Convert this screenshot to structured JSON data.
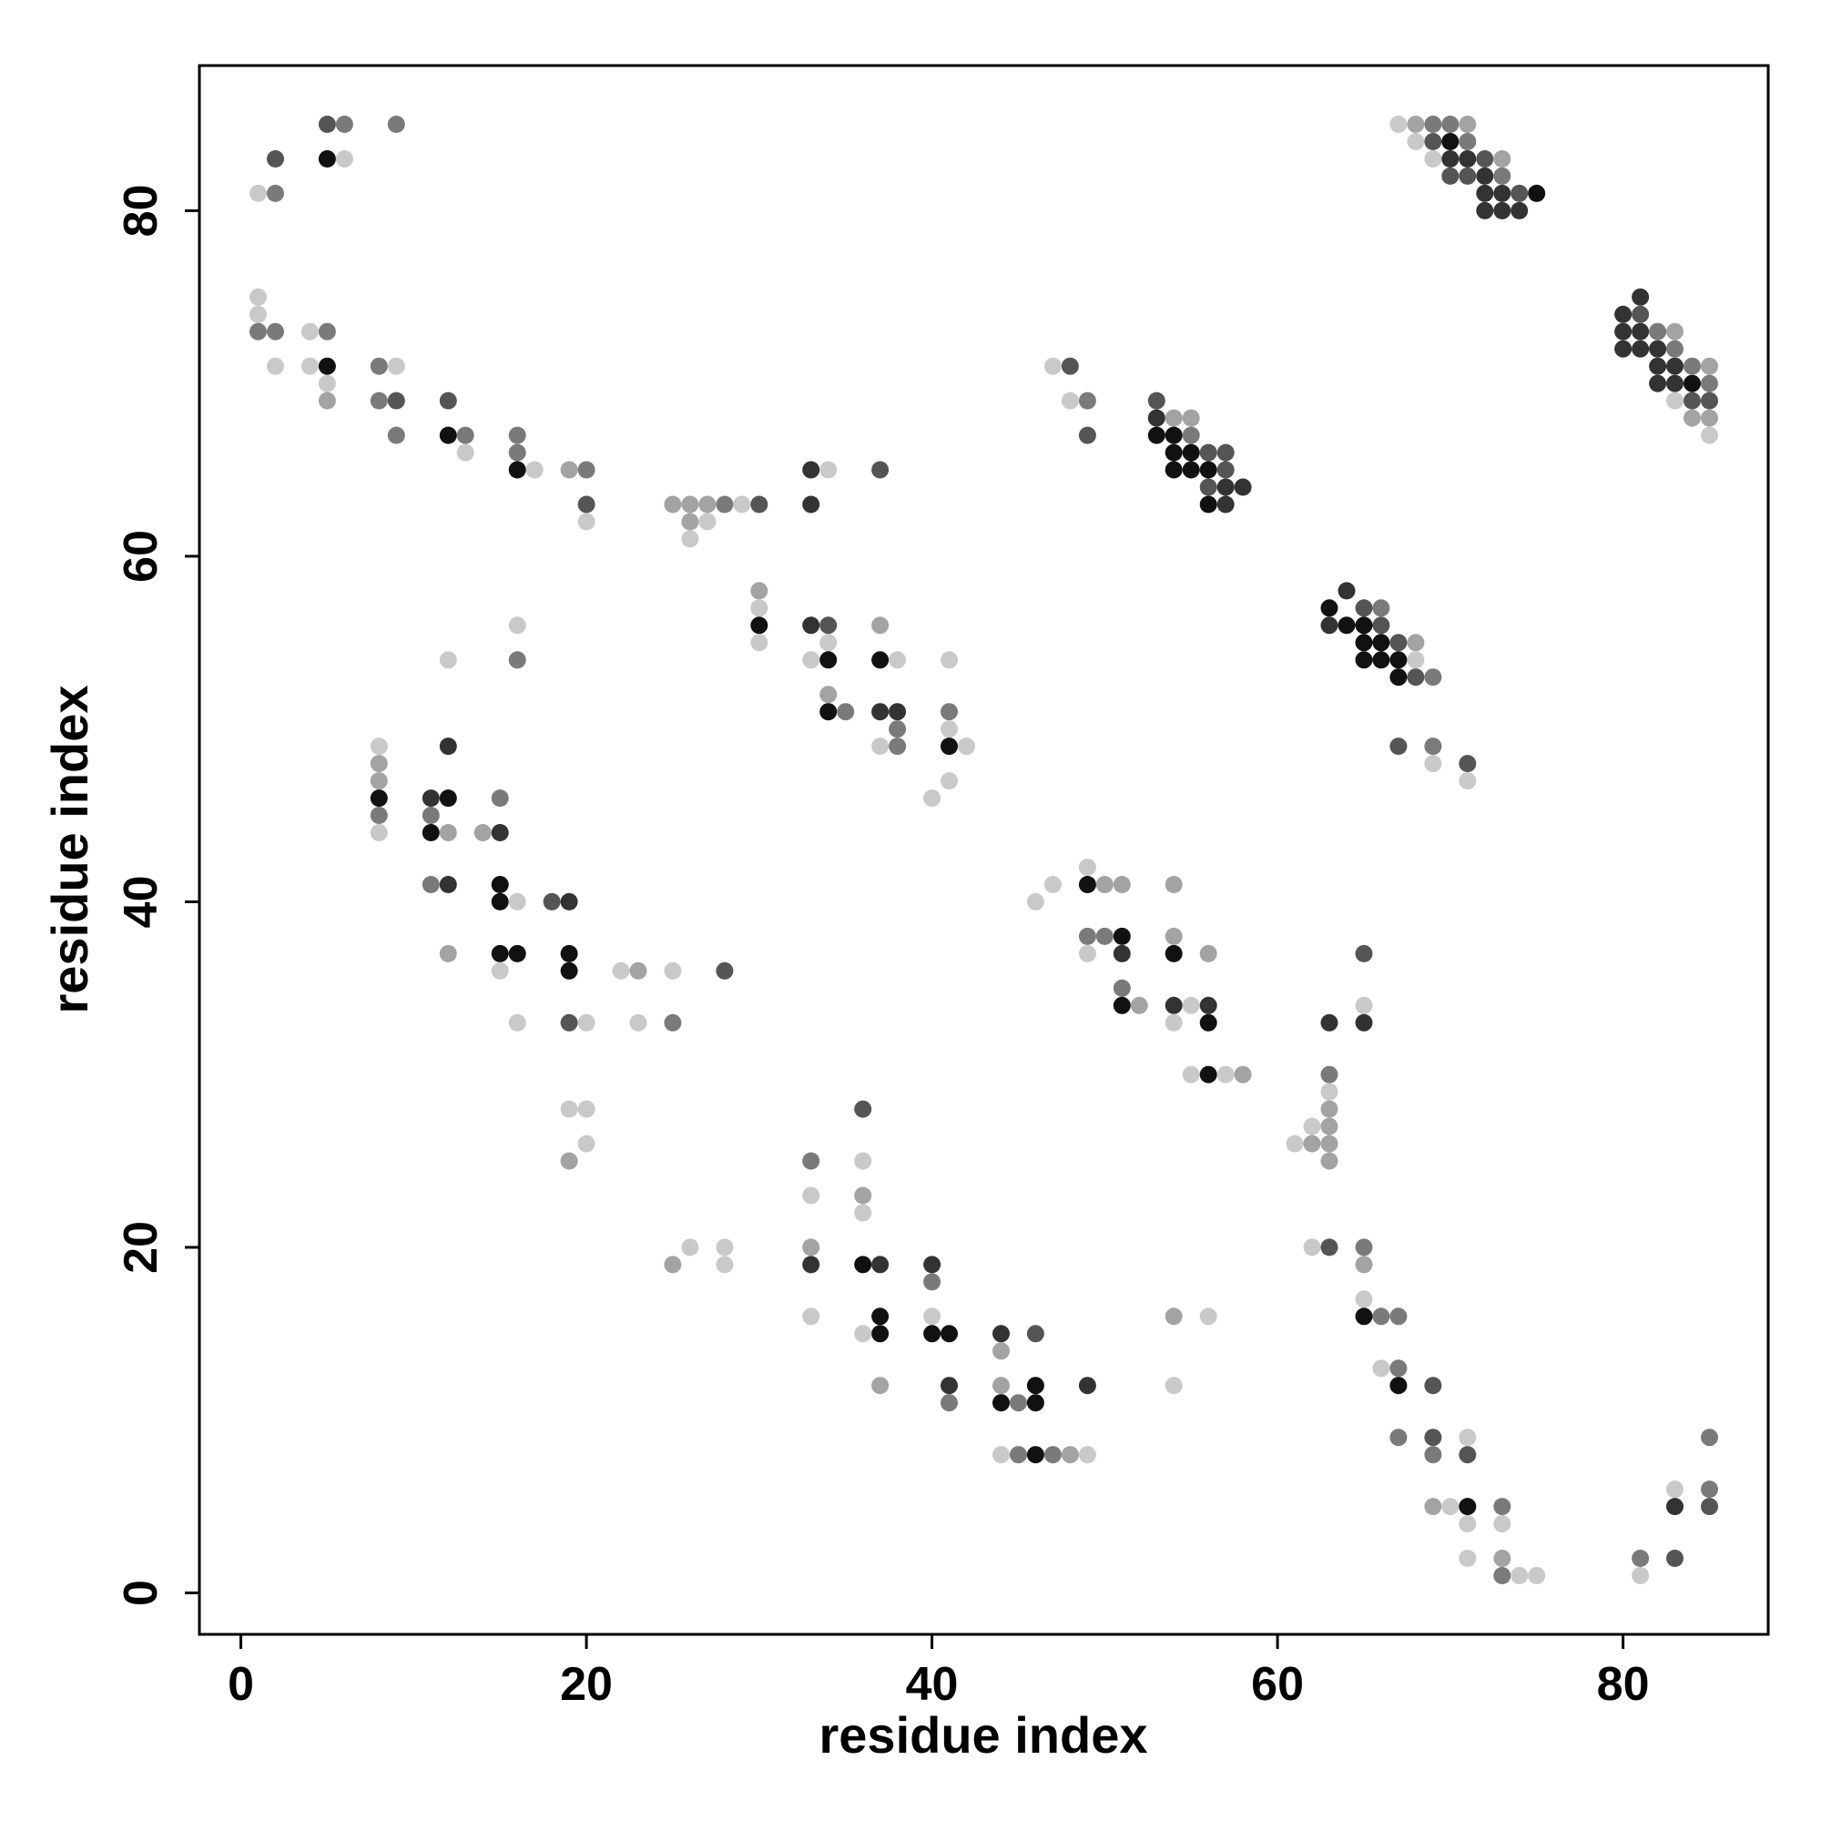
{
  "chart_data": {
    "type": "scatter",
    "title": "",
    "xlabel": "residue index",
    "ylabel": "residue index",
    "xlim": [
      -2.4,
      88.4
    ],
    "ylim": [
      -2.4,
      88.4
    ],
    "xticks": [
      0,
      20,
      40,
      60,
      80
    ],
    "yticks": [
      0,
      20,
      40,
      60,
      80
    ],
    "grid": false,
    "legend": "none",
    "point_shades": {
      "1": "#c9c9c9",
      "2": "#a3a3a3",
      "3": "#7a7a7a",
      "4": "#555555",
      "5": "#333333",
      "6": "#111111"
    },
    "points": [
      [
        1,
        81,
        1
      ],
      [
        2,
        81,
        3
      ],
      [
        2,
        83,
        4
      ],
      [
        5,
        85,
        4
      ],
      [
        6,
        85,
        3
      ],
      [
        9,
        85,
        3
      ],
      [
        5,
        83,
        6
      ],
      [
        6,
        83,
        1
      ],
      [
        1,
        75,
        1
      ],
      [
        1,
        74,
        1
      ],
      [
        1,
        73,
        3
      ],
      [
        2,
        73,
        3
      ],
      [
        2,
        71,
        1
      ],
      [
        4,
        73,
        1
      ],
      [
        5,
        73,
        3
      ],
      [
        4,
        71,
        1
      ],
      [
        5,
        71,
        6
      ],
      [
        5,
        70,
        1
      ],
      [
        5,
        69,
        2
      ],
      [
        8,
        71,
        3
      ],
      [
        9,
        71,
        1
      ],
      [
        8,
        69,
        3
      ],
      [
        9,
        69,
        4
      ],
      [
        9,
        67,
        3
      ],
      [
        12,
        69,
        4
      ],
      [
        12,
        67,
        6
      ],
      [
        13,
        67,
        3
      ],
      [
        13,
        66,
        1
      ],
      [
        16,
        67,
        3
      ],
      [
        16,
        66,
        3
      ],
      [
        16,
        65,
        6
      ],
      [
        17,
        65,
        1
      ],
      [
        19,
        65,
        2
      ],
      [
        20,
        65,
        3
      ],
      [
        20,
        63,
        4
      ],
      [
        20,
        62,
        1
      ],
      [
        25,
        63,
        2
      ],
      [
        26,
        63,
        2
      ],
      [
        27,
        63,
        2
      ],
      [
        28,
        63,
        3
      ],
      [
        29,
        63,
        1
      ],
      [
        30,
        63,
        4
      ],
      [
        26,
        62,
        2
      ],
      [
        27,
        62,
        1
      ],
      [
        26,
        61,
        1
      ],
      [
        33,
        65,
        5
      ],
      [
        34,
        65,
        1
      ],
      [
        37,
        65,
        4
      ],
      [
        33,
        63,
        5
      ],
      [
        30,
        58,
        2
      ],
      [
        30,
        57,
        1
      ],
      [
        30,
        56,
        6
      ],
      [
        30,
        55,
        1
      ],
      [
        33,
        56,
        5
      ],
      [
        34,
        56,
        4
      ],
      [
        33,
        54,
        1
      ],
      [
        34,
        55,
        1
      ],
      [
        34,
        54,
        6
      ],
      [
        34,
        52,
        2
      ],
      [
        34,
        51,
        6
      ],
      [
        35,
        51,
        3
      ],
      [
        37,
        56,
        2
      ],
      [
        37,
        54,
        6
      ],
      [
        38,
        54,
        1
      ],
      [
        37,
        51,
        5
      ],
      [
        38,
        51,
        5
      ],
      [
        38,
        50,
        3
      ],
      [
        37,
        49,
        1
      ],
      [
        38,
        49,
        3
      ],
      [
        41,
        54,
        1
      ],
      [
        41,
        51,
        3
      ],
      [
        41,
        50,
        1
      ],
      [
        41,
        49,
        6
      ],
      [
        42,
        49,
        1
      ],
      [
        41,
        47,
        1
      ],
      [
        40,
        46,
        1
      ],
      [
        12,
        54,
        1
      ],
      [
        16,
        56,
        1
      ],
      [
        16,
        54,
        3
      ],
      [
        12,
        49,
        5
      ],
      [
        8,
        49,
        1
      ],
      [
        8,
        48,
        2
      ],
      [
        8,
        47,
        2
      ],
      [
        8,
        46,
        6
      ],
      [
        8,
        45,
        3
      ],
      [
        8,
        44,
        1
      ],
      [
        11,
        46,
        5
      ],
      [
        12,
        46,
        6
      ],
      [
        11,
        45,
        3
      ],
      [
        11,
        44,
        6
      ],
      [
        12,
        44,
        2
      ],
      [
        14,
        44,
        2
      ],
      [
        15,
        46,
        3
      ],
      [
        15,
        44,
        5
      ],
      [
        11,
        41,
        3
      ],
      [
        12,
        41,
        5
      ],
      [
        15,
        41,
        6
      ],
      [
        15,
        40,
        6
      ],
      [
        16,
        40,
        1
      ],
      [
        18,
        40,
        4
      ],
      [
        19,
        40,
        5
      ],
      [
        12,
        37,
        2
      ],
      [
        15,
        37,
        6
      ],
      [
        16,
        37,
        6
      ],
      [
        15,
        36,
        1
      ],
      [
        19,
        37,
        6
      ],
      [
        19,
        36,
        6
      ],
      [
        22,
        36,
        1
      ],
      [
        23,
        36,
        2
      ],
      [
        25,
        36,
        1
      ],
      [
        28,
        36,
        4
      ],
      [
        16,
        33,
        1
      ],
      [
        19,
        33,
        4
      ],
      [
        20,
        33,
        1
      ],
      [
        23,
        33,
        1
      ],
      [
        25,
        33,
        3
      ],
      [
        19,
        28,
        1
      ],
      [
        20,
        28,
        1
      ],
      [
        20,
        26,
        1
      ],
      [
        19,
        25,
        2
      ],
      [
        25,
        19,
        2
      ],
      [
        26,
        20,
        1
      ],
      [
        28,
        20,
        1
      ],
      [
        28,
        19,
        1
      ],
      [
        33,
        25,
        3
      ],
      [
        33,
        23,
        1
      ],
      [
        33,
        20,
        2
      ],
      [
        33,
        19,
        5
      ],
      [
        33,
        16,
        1
      ],
      [
        36,
        28,
        4
      ],
      [
        36,
        25,
        1
      ],
      [
        36,
        23,
        2
      ],
      [
        36,
        22,
        1
      ],
      [
        36,
        19,
        6
      ],
      [
        37,
        19,
        5
      ],
      [
        37,
        16,
        6
      ],
      [
        37,
        15,
        6
      ],
      [
        36,
        15,
        1
      ],
      [
        37,
        12,
        2
      ],
      [
        40,
        19,
        5
      ],
      [
        40,
        18,
        3
      ],
      [
        40,
        16,
        1
      ],
      [
        40,
        15,
        6
      ],
      [
        41,
        15,
        6
      ],
      [
        41,
        12,
        5
      ],
      [
        41,
        11,
        3
      ],
      [
        44,
        15,
        5
      ],
      [
        46,
        15,
        4
      ],
      [
        44,
        14,
        2
      ],
      [
        44,
        12,
        2
      ],
      [
        46,
        12,
        6
      ],
      [
        44,
        11,
        6
      ],
      [
        45,
        11,
        3
      ],
      [
        46,
        11,
        6
      ],
      [
        49,
        12,
        5
      ],
      [
        44,
        8,
        1
      ],
      [
        45,
        8,
        3
      ],
      [
        46,
        8,
        6
      ],
      [
        47,
        8,
        3
      ],
      [
        48,
        8,
        2
      ],
      [
        49,
        8,
        1
      ],
      [
        47,
        71,
        1
      ],
      [
        48,
        71,
        4
      ],
      [
        48,
        69,
        1
      ],
      [
        49,
        69,
        3
      ],
      [
        49,
        67,
        4
      ],
      [
        53,
        69,
        4
      ],
      [
        53,
        68,
        5
      ],
      [
        54,
        68,
        2
      ],
      [
        55,
        68,
        2
      ],
      [
        53,
        67,
        6
      ],
      [
        54,
        67,
        6
      ],
      [
        55,
        67,
        3
      ],
      [
        54,
        66,
        6
      ],
      [
        55,
        66,
        6
      ],
      [
        56,
        66,
        4
      ],
      [
        57,
        66,
        4
      ],
      [
        54,
        65,
        6
      ],
      [
        55,
        65,
        6
      ],
      [
        56,
        65,
        6
      ],
      [
        57,
        65,
        4
      ],
      [
        56,
        64,
        4
      ],
      [
        57,
        64,
        5
      ],
      [
        58,
        64,
        5
      ],
      [
        56,
        63,
        6
      ],
      [
        57,
        63,
        5
      ],
      [
        63,
        57,
        6
      ],
      [
        64,
        58,
        5
      ],
      [
        65,
        57,
        4
      ],
      [
        66,
        57,
        3
      ],
      [
        63,
        56,
        5
      ],
      [
        64,
        56,
        6
      ],
      [
        65,
        56,
        6
      ],
      [
        66,
        56,
        4
      ],
      [
        65,
        55,
        6
      ],
      [
        66,
        55,
        6
      ],
      [
        67,
        55,
        4
      ],
      [
        68,
        55,
        2
      ],
      [
        65,
        54,
        6
      ],
      [
        66,
        54,
        6
      ],
      [
        67,
        54,
        6
      ],
      [
        68,
        54,
        1
      ],
      [
        67,
        53,
        6
      ],
      [
        68,
        53,
        4
      ],
      [
        69,
        53,
        3
      ],
      [
        67,
        49,
        4
      ],
      [
        69,
        49,
        3
      ],
      [
        69,
        48,
        1
      ],
      [
        71,
        48,
        4
      ],
      [
        71,
        47,
        1
      ],
      [
        46,
        40,
        1
      ],
      [
        47,
        41,
        1
      ],
      [
        49,
        42,
        1
      ],
      [
        49,
        41,
        6
      ],
      [
        50,
        41,
        2
      ],
      [
        51,
        41,
        2
      ],
      [
        49,
        38,
        3
      ],
      [
        50,
        38,
        3
      ],
      [
        51,
        38,
        6
      ],
      [
        49,
        37,
        1
      ],
      [
        51,
        37,
        5
      ],
      [
        51,
        35,
        3
      ],
      [
        51,
        34,
        6
      ],
      [
        52,
        34,
        2
      ],
      [
        54,
        41,
        2
      ],
      [
        54,
        38,
        2
      ],
      [
        54,
        37,
        6
      ],
      [
        56,
        37,
        2
      ],
      [
        54,
        34,
        5
      ],
      [
        55,
        34,
        1
      ],
      [
        56,
        34,
        5
      ],
      [
        54,
        33,
        1
      ],
      [
        56,
        33,
        6
      ],
      [
        55,
        30,
        1
      ],
      [
        56,
        30,
        6
      ],
      [
        57,
        30,
        1
      ],
      [
        58,
        30,
        2
      ],
      [
        65,
        37,
        4
      ],
      [
        65,
        34,
        1
      ],
      [
        63,
        33,
        5
      ],
      [
        65,
        33,
        5
      ],
      [
        63,
        30,
        3
      ],
      [
        63,
        29,
        1
      ],
      [
        63,
        28,
        2
      ],
      [
        62,
        27,
        1
      ],
      [
        63,
        27,
        2
      ],
      [
        61,
        26,
        1
      ],
      [
        62,
        26,
        2
      ],
      [
        63,
        26,
        2
      ],
      [
        63,
        25,
        2
      ],
      [
        62,
        20,
        1
      ],
      [
        63,
        20,
        4
      ],
      [
        65,
        20,
        3
      ],
      [
        65,
        19,
        2
      ],
      [
        65,
        17,
        1
      ],
      [
        65,
        16,
        6
      ],
      [
        66,
        16,
        3
      ],
      [
        67,
        16,
        3
      ],
      [
        54,
        16,
        2
      ],
      [
        56,
        16,
        1
      ],
      [
        54,
        12,
        1
      ],
      [
        66,
        13,
        1
      ],
      [
        67,
        13,
        3
      ],
      [
        67,
        12,
        6
      ],
      [
        69,
        12,
        4
      ],
      [
        67,
        9,
        3
      ],
      [
        69,
        9,
        4
      ],
      [
        69,
        8,
        3
      ],
      [
        71,
        9,
        1
      ],
      [
        71,
        8,
        4
      ],
      [
        69,
        5,
        2
      ],
      [
        70,
        5,
        1
      ],
      [
        71,
        5,
        6
      ],
      [
        71,
        4,
        1
      ],
      [
        73,
        5,
        3
      ],
      [
        73,
        4,
        1
      ],
      [
        71,
        2,
        1
      ],
      [
        73,
        2,
        2
      ],
      [
        73,
        1,
        3
      ],
      [
        74,
        1,
        1
      ],
      [
        75,
        1,
        1
      ],
      [
        81,
        2,
        3
      ],
      [
        81,
        1,
        1
      ],
      [
        83,
        6,
        1
      ],
      [
        83,
        5,
        5
      ],
      [
        83,
        2,
        4
      ],
      [
        85,
        9,
        3
      ],
      [
        85,
        6,
        3
      ],
      [
        85,
        5,
        4
      ],
      [
        67,
        85,
        1
      ],
      [
        68,
        85,
        2
      ],
      [
        69,
        85,
        3
      ],
      [
        70,
        85,
        3
      ],
      [
        71,
        85,
        2
      ],
      [
        68,
        84,
        1
      ],
      [
        69,
        84,
        4
      ],
      [
        70,
        84,
        6
      ],
      [
        71,
        84,
        3
      ],
      [
        69,
        83,
        1
      ],
      [
        70,
        83,
        5
      ],
      [
        71,
        83,
        5
      ],
      [
        72,
        83,
        4
      ],
      [
        73,
        83,
        2
      ],
      [
        70,
        82,
        4
      ],
      [
        71,
        82,
        4
      ],
      [
        72,
        82,
        5
      ],
      [
        73,
        82,
        3
      ],
      [
        72,
        81,
        5
      ],
      [
        73,
        81,
        5
      ],
      [
        74,
        81,
        4
      ],
      [
        75,
        81,
        6
      ],
      [
        72,
        80,
        5
      ],
      [
        73,
        80,
        5
      ],
      [
        74,
        80,
        5
      ],
      [
        81,
        75,
        5
      ],
      [
        80,
        74,
        5
      ],
      [
        81,
        74,
        4
      ],
      [
        80,
        73,
        5
      ],
      [
        81,
        73,
        5
      ],
      [
        82,
        73,
        3
      ],
      [
        83,
        73,
        2
      ],
      [
        80,
        72,
        5
      ],
      [
        81,
        72,
        5
      ],
      [
        82,
        72,
        5
      ],
      [
        83,
        72,
        3
      ],
      [
        82,
        71,
        5
      ],
      [
        83,
        71,
        5
      ],
      [
        84,
        71,
        3
      ],
      [
        85,
        71,
        2
      ],
      [
        82,
        70,
        5
      ],
      [
        83,
        70,
        5
      ],
      [
        84,
        70,
        6
      ],
      [
        85,
        70,
        3
      ],
      [
        83,
        69,
        1
      ],
      [
        84,
        69,
        4
      ],
      [
        85,
        69,
        4
      ],
      [
        84,
        68,
        2
      ],
      [
        85,
        68,
        2
      ],
      [
        85,
        67,
        1
      ]
    ]
  }
}
